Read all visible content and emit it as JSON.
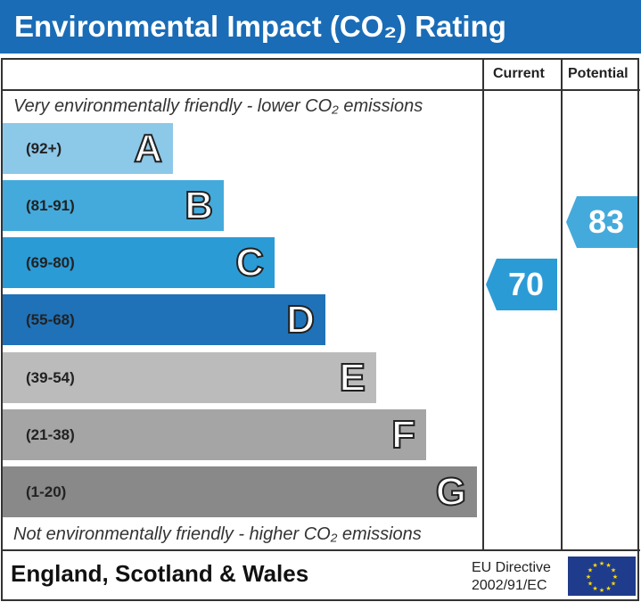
{
  "title": "Environmental Impact (CO₂) Rating",
  "columns": {
    "current": "Current",
    "potential": "Potential"
  },
  "top_note": "Very environmentally friendly - lower CO₂ emissions",
  "bottom_note": "Not environmentally friendly - higher CO₂ emissions",
  "bands": [
    {
      "range": "(92+)",
      "letter": "A",
      "color": "#8cc8e8"
    },
    {
      "range": "(81-91)",
      "letter": "B",
      "color": "#44aadc"
    },
    {
      "range": "(69-80)",
      "letter": "C",
      "color": "#2b9bd6"
    },
    {
      "range": "(55-68)",
      "letter": "D",
      "color": "#1f72b8"
    },
    {
      "range": "(39-54)",
      "letter": "E",
      "color": "#bbbbbb"
    },
    {
      "range": "(21-38)",
      "letter": "F",
      "color": "#a5a5a5"
    },
    {
      "range": "(1-20)",
      "letter": "G",
      "color": "#898989"
    }
  ],
  "current": {
    "value": "70",
    "color": "#2b9bd6"
  },
  "potential": {
    "value": "83",
    "color": "#44aadc"
  },
  "footer": {
    "region": "England, Scotland & Wales",
    "directive_line1": "EU Directive",
    "directive_line2": "2002/91/EC"
  },
  "flag_icon": "eu-flag-icon"
}
